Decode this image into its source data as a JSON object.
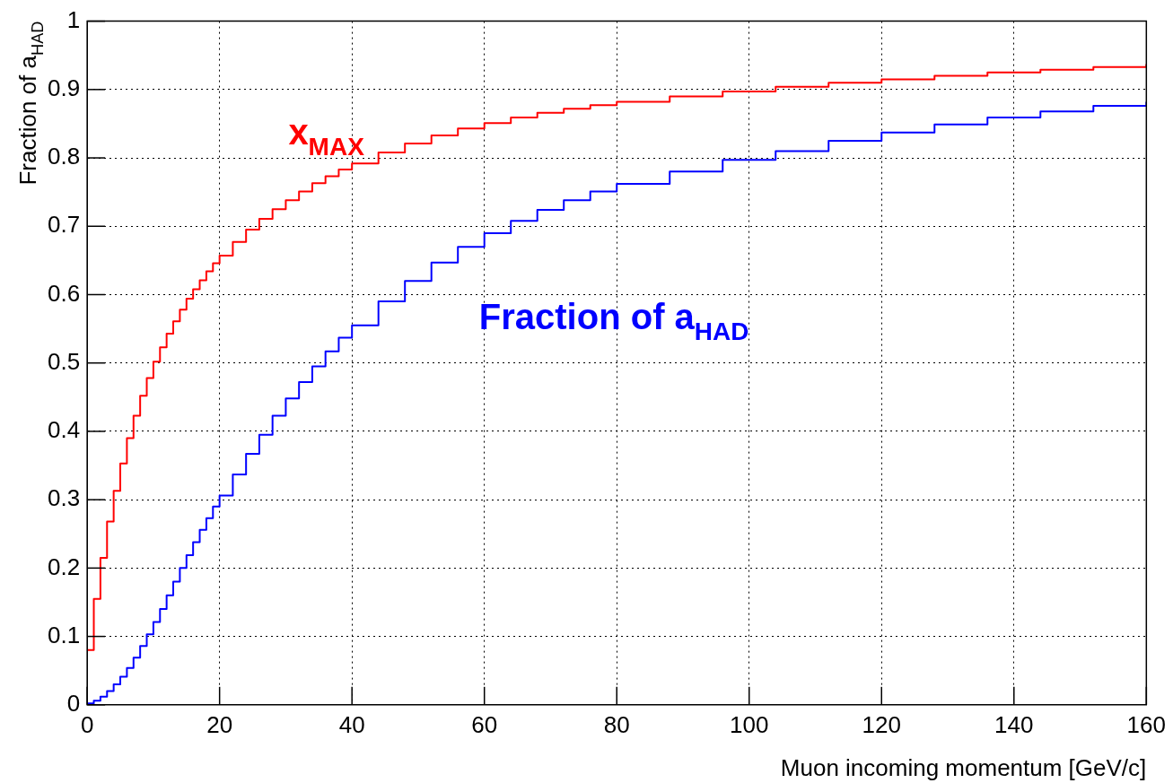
{
  "chart_data": {
    "type": "step",
    "xlabel": "Muon incoming momentum [GeV/c]",
    "ylabel": "Fraction of a$_{HAD}$",
    "xlim": [
      0,
      160
    ],
    "xticks": [
      0,
      20,
      40,
      60,
      80,
      100,
      120,
      140,
      160
    ],
    "ylim": [
      0,
      1
    ],
    "yticks": [
      0,
      0.1,
      0.2,
      0.3,
      0.4,
      0.5,
      0.6,
      0.7,
      0.8,
      0.9,
      1
    ],
    "grid": true,
    "line_style": "solid",
    "marker": "none",
    "series": [
      {
        "name": "x$_{MAX}$",
        "color": "#ff0000",
        "x": [
          0,
          1,
          2,
          3,
          4,
          5,
          6,
          7,
          8,
          9,
          10,
          11,
          12,
          13,
          14,
          15,
          16,
          17,
          18,
          19,
          20,
          22,
          24,
          26,
          28,
          30,
          32,
          34,
          36,
          38,
          40,
          44,
          48,
          52,
          56,
          60,
          64,
          68,
          72,
          76,
          80,
          88,
          96,
          104,
          112,
          120,
          128,
          136,
          144,
          152,
          160
        ],
        "values": [
          0.08,
          0.155,
          0.215,
          0.268,
          0.313,
          0.353,
          0.39,
          0.423,
          0.452,
          0.478,
          0.502,
          0.523,
          0.543,
          0.561,
          0.578,
          0.594,
          0.608,
          0.621,
          0.634,
          0.646,
          0.657,
          0.677,
          0.695,
          0.711,
          0.725,
          0.738,
          0.751,
          0.763,
          0.773,
          0.783,
          0.792,
          0.808,
          0.821,
          0.833,
          0.843,
          0.851,
          0.859,
          0.866,
          0.872,
          0.877,
          0.882,
          0.89,
          0.897,
          0.904,
          0.91,
          0.915,
          0.92,
          0.925,
          0.929,
          0.933,
          0.937
        ]
      },
      {
        "name": "Fraction of a$_{HAD}$",
        "color": "#0000ff",
        "x": [
          0,
          1,
          2,
          3,
          4,
          5,
          6,
          7,
          8,
          9,
          10,
          11,
          12,
          13,
          14,
          15,
          16,
          17,
          18,
          19,
          20,
          22,
          24,
          26,
          28,
          30,
          32,
          34,
          36,
          38,
          40,
          44,
          48,
          52,
          56,
          60,
          64,
          68,
          72,
          76,
          80,
          88,
          96,
          104,
          112,
          120,
          128,
          136,
          144,
          152,
          160
        ],
        "values": [
          0.002,
          0.006,
          0.012,
          0.02,
          0.03,
          0.041,
          0.054,
          0.069,
          0.086,
          0.103,
          0.121,
          0.14,
          0.16,
          0.18,
          0.2,
          0.219,
          0.238,
          0.256,
          0.273,
          0.29,
          0.306,
          0.337,
          0.367,
          0.395,
          0.423,
          0.448,
          0.472,
          0.495,
          0.517,
          0.537,
          0.555,
          0.59,
          0.62,
          0.647,
          0.67,
          0.69,
          0.708,
          0.724,
          0.738,
          0.751,
          0.762,
          0.78,
          0.797,
          0.81,
          0.825,
          0.837,
          0.849,
          0.859,
          0.868,
          0.876,
          0.882
        ]
      }
    ]
  }
}
